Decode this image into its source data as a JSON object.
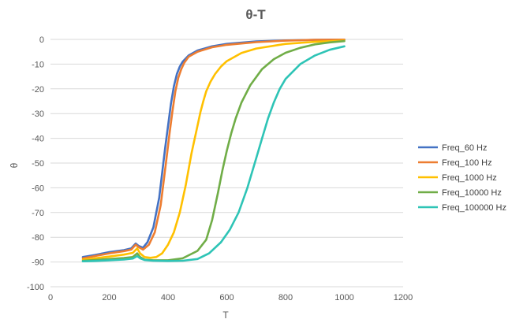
{
  "chart_data": {
    "type": "line",
    "title": "θ-T",
    "xlabel": "T",
    "ylabel": "θ",
    "xlim": [
      0,
      1200
    ],
    "ylim": [
      -100,
      0
    ],
    "xticks": [
      0,
      200,
      400,
      600,
      800,
      1000,
      1200
    ],
    "yticks": [
      0,
      -10,
      -20,
      -30,
      -40,
      -50,
      -60,
      -70,
      -80,
      -90,
      -100
    ],
    "grid": "horizontal",
    "legend_position": "right",
    "series": [
      {
        "name": "Freq_60 Hz",
        "color": "#4472C4",
        "x": [
          110,
          150,
          200,
          250,
          275,
          290,
          300,
          315,
          330,
          350,
          370,
          390,
          400,
          410,
          420,
          430,
          440,
          450,
          470,
          500,
          550,
          600,
          700,
          800,
          900,
          1000
        ],
        "y": [
          -88,
          -87.2,
          -86,
          -85.2,
          -84.5,
          -82.5,
          -83.5,
          -84.2,
          -82,
          -76,
          -64,
          -44,
          -35,
          -26,
          -19,
          -14,
          -11,
          -9,
          -6.5,
          -4.5,
          -2.8,
          -1.8,
          -0.8,
          -0.4,
          -0.2,
          -0.1
        ]
      },
      {
        "name": "Freq_100 Hz",
        "color": "#ED7D31",
        "x": [
          110,
          150,
          200,
          250,
          275,
          290,
          300,
          315,
          335,
          355,
          375,
          395,
          405,
          415,
          425,
          435,
          445,
          455,
          470,
          500,
          550,
          600,
          700,
          800,
          900,
          1000
        ],
        "y": [
          -88.5,
          -87.6,
          -86.5,
          -85.6,
          -85,
          -83,
          -84,
          -85,
          -83,
          -78,
          -67,
          -48,
          -38,
          -29,
          -21,
          -15.5,
          -12,
          -9.5,
          -7,
          -5,
          -3.2,
          -2.2,
          -1.1,
          -0.5,
          -0.2,
          -0.1
        ]
      },
      {
        "name": "Freq_1000 Hz",
        "color": "#FFC000",
        "x": [
          110,
          150,
          200,
          250,
          280,
          295,
          305,
          320,
          340,
          360,
          380,
          400,
          420,
          440,
          460,
          480,
          500,
          510,
          520,
          530,
          545,
          560,
          580,
          600,
          650,
          700,
          800,
          900,
          1000
        ],
        "y": [
          -89,
          -88.5,
          -87.8,
          -87,
          -86.3,
          -84.5,
          -86.5,
          -88,
          -88.3,
          -88,
          -86.5,
          -83,
          -78,
          -70,
          -59,
          -46,
          -35,
          -29.5,
          -25,
          -21,
          -17,
          -14,
          -11,
          -8.8,
          -5.5,
          -3.7,
          -1.8,
          -1,
          -0.5
        ]
      },
      {
        "name": "Freq_10000 Hz",
        "color": "#70AD47",
        "x": [
          110,
          150,
          200,
          250,
          280,
          295,
          305,
          320,
          350,
          400,
          450,
          500,
          530,
          550,
          570,
          585,
          600,
          615,
          630,
          650,
          680,
          720,
          760,
          800,
          850,
          900,
          950,
          1000
        ],
        "y": [
          -89.5,
          -89.2,
          -88.8,
          -88.4,
          -88,
          -86.5,
          -88,
          -89,
          -89.3,
          -89.3,
          -88.5,
          -85.5,
          -81,
          -73,
          -62,
          -53,
          -45,
          -38,
          -32,
          -25.5,
          -18.5,
          -12,
          -8,
          -5.4,
          -3.4,
          -2,
          -1.2,
          -0.7
        ]
      },
      {
        "name": "Freq_100000 Hz",
        "color": "#2EC4B6",
        "x": [
          110,
          150,
          200,
          250,
          280,
          295,
          305,
          320,
          350,
          400,
          450,
          500,
          540,
          580,
          610,
          640,
          670,
          700,
          720,
          740,
          760,
          780,
          800,
          850,
          900,
          950,
          1000
        ],
        "y": [
          -89.7,
          -89.6,
          -89.3,
          -89,
          -88.6,
          -87.6,
          -88.5,
          -89.2,
          -89.5,
          -89.6,
          -89.5,
          -88.8,
          -86.5,
          -82,
          -77,
          -70,
          -60,
          -48,
          -40,
          -32,
          -25.5,
          -20,
          -16,
          -10,
          -6.5,
          -4.2,
          -2.8
        ]
      }
    ]
  }
}
